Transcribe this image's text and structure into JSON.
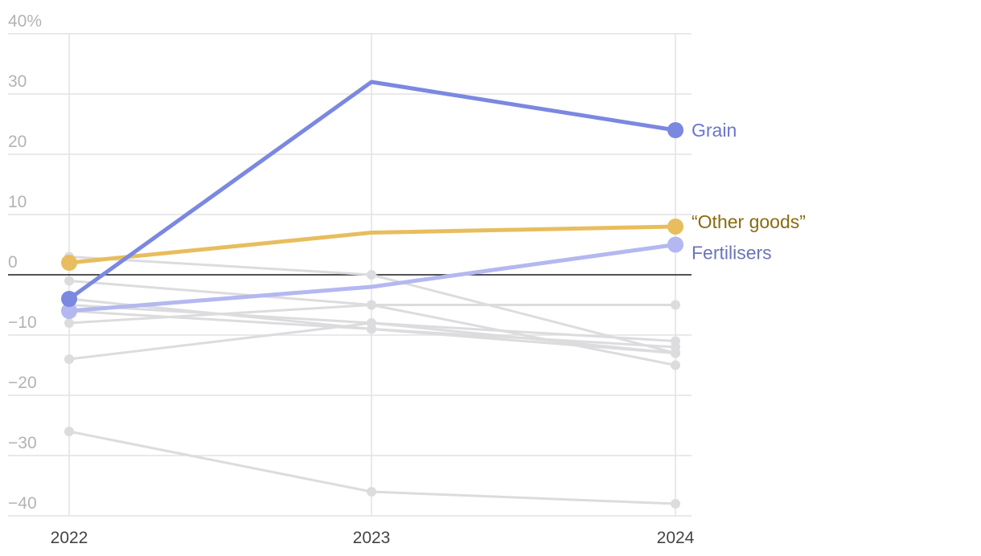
{
  "chart_data": {
    "type": "line",
    "x": [
      "2022",
      "2023",
      "2024"
    ],
    "ylim": [
      -40,
      40
    ],
    "yticks": [
      40,
      30,
      20,
      10,
      0,
      -10,
      -20,
      -30,
      -40
    ],
    "ytick_labels": [
      "40%",
      "30",
      "20",
      "10",
      "0",
      "−10",
      "−20",
      "−30",
      "−40"
    ],
    "grid": true,
    "background_series": [
      {
        "name": "other-1",
        "values": [
          3,
          0,
          -13
        ]
      },
      {
        "name": "other-2",
        "values": [
          -1,
          -5,
          -5
        ]
      },
      {
        "name": "other-3",
        "values": [
          -4,
          -9,
          -12
        ]
      },
      {
        "name": "other-4",
        "values": [
          -5,
          -8,
          -11
        ]
      },
      {
        "name": "other-5",
        "values": [
          -6,
          -9,
          -13
        ]
      },
      {
        "name": "other-6",
        "values": [
          -8,
          -5,
          -15
        ]
      },
      {
        "name": "other-7",
        "values": [
          -14,
          -8,
          -13
        ]
      },
      {
        "name": "other-8",
        "values": [
          -26,
          -36,
          -38
        ]
      }
    ],
    "highlight_series": [
      {
        "name": "Grain",
        "label": "Grain",
        "values": [
          -4,
          32,
          24
        ],
        "color": "#7b88e0",
        "label_color": "#6a75cf"
      },
      {
        "name": "Other goods",
        "label": "“Other goods”",
        "values": [
          2,
          7,
          8
        ],
        "color": "#e8bd5e",
        "label_color": "#8a6a10"
      },
      {
        "name": "Fertilisers",
        "label": "Fertilisers",
        "values": [
          -6,
          -2,
          5
        ],
        "color": "#b3b8f0",
        "label_color": "#6b75b8"
      }
    ],
    "background_color": "#dcdcdf"
  }
}
